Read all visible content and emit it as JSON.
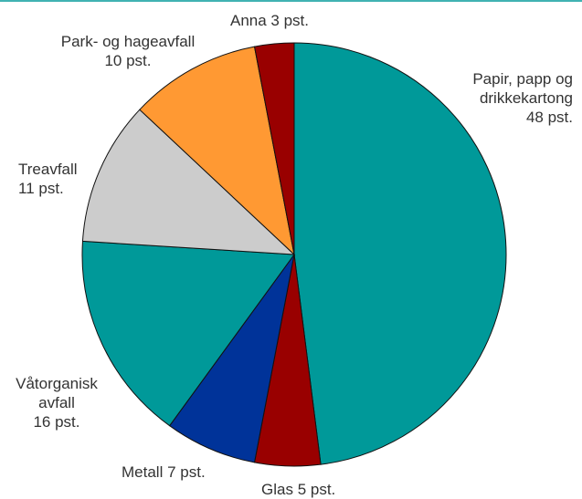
{
  "chart_data": {
    "type": "pie",
    "categories": [
      "Papir, papp og drikkekartong",
      "Glas",
      "Metall",
      "Våtorganisk avfall",
      "Treavfall",
      "Park- og hageavfall",
      "Anna"
    ],
    "values": [
      48,
      5,
      7,
      16,
      11,
      10,
      3
    ],
    "value_labels": [
      "48 pst.",
      "5 pst.",
      "7 pst.",
      "16 pst.",
      "11 pst.",
      "10 pst.",
      "3 pst."
    ],
    "colors": [
      "#009999",
      "#990000",
      "#003399",
      "#009999",
      "#cccccc",
      "#ff9933",
      "#990000"
    ]
  }
}
